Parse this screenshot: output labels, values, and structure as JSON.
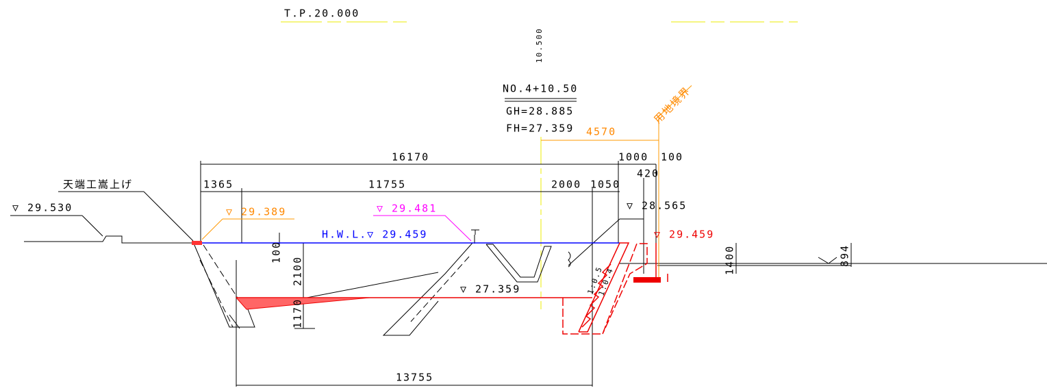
{
  "header": {
    "datum": "T.P.20.000",
    "offset": "10.500",
    "station": "NO.4+10.50",
    "ground_height": "GH=28.885",
    "formation_height": "FH=27.359",
    "boundary": "用地境界"
  },
  "dimensions": {
    "d4570": "4570",
    "d16170": "16170",
    "d1000": "1000",
    "d100_top": "100",
    "d420": "420",
    "d1365": "1365",
    "d11755": "11755",
    "d2000": "2000",
    "d1050": "1050",
    "d100_left": "100",
    "d2100": "2100",
    "d1170": "1170",
    "d1400": "1400",
    "d894": "894",
    "d13755": "13755"
  },
  "levels": {
    "crest_raise": "天端工嵩上げ",
    "el_29530": "▽ 29.530",
    "el_29389": "▽ 29.389",
    "el_29481": "▽ 29.481",
    "el_28565": "▽ 28.565",
    "hwl": "H.W.L.▽ 29.459",
    "el_29459": "▽ 29.459",
    "el_27359": "▽ 27.359"
  },
  "slopes": {
    "s1": "1:0.5",
    "s2": "1:0.4"
  }
}
